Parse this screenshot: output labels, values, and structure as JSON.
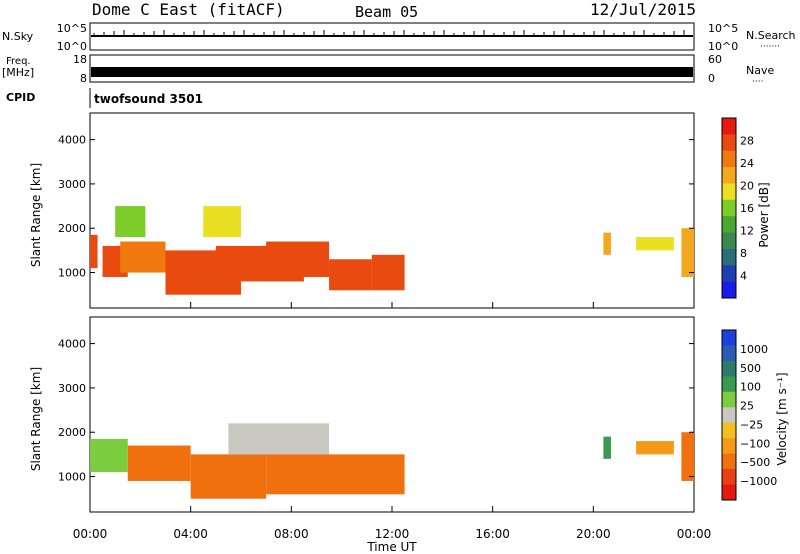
{
  "header": {
    "station": "Dome C East (fitACF)",
    "beam": "Beam 05",
    "date": "12/Jul/2015"
  },
  "panels": {
    "nsky": {
      "label": "N.Sky",
      "ticks_left": [
        "10^5",
        "10^0"
      ],
      "ticks_right": [
        "10^5",
        "10^0"
      ],
      "right_label": "N.Search",
      "right_dots": "·······"
    },
    "freq": {
      "label_line1": "Freq.",
      "label_line2": "[MHz]",
      "ticks_left": [
        "18",
        "8"
      ],
      "ticks_right": [
        "60",
        "0"
      ],
      "right_label": "Nave",
      "right_dots": "····"
    },
    "cpid": {
      "label": "CPID",
      "value": "twofsound 3501"
    }
  },
  "chart_data": [
    {
      "type": "heatmap",
      "name": "power-panel",
      "xlabel": "",
      "ylabel": "Slant Range [km]",
      "yticks": [
        "1000",
        "2000",
        "3000",
        "4000"
      ],
      "ylim": [
        200,
        4600
      ],
      "colorbar": {
        "label": "Power [dB]",
        "ticks": [
          "4",
          "8",
          "12",
          "16",
          "20",
          "24",
          "28"
        ],
        "colors": [
          "#1a1ae6",
          "#1e3fb4",
          "#2a6e7a",
          "#3a8a50",
          "#48a830",
          "#7ccc2a",
          "#e8e020",
          "#f4a820",
          "#f07a10",
          "#e84a10",
          "#e41a10"
        ]
      },
      "blocks": [
        {
          "t0": 0.0,
          "t1": 0.3,
          "r0": 1100,
          "r1": 1850,
          "v": 28
        },
        {
          "t0": 0.5,
          "t1": 1.5,
          "r0": 900,
          "r1": 1600,
          "v": 26
        },
        {
          "t0": 1.2,
          "t1": 3.0,
          "r0": 1000,
          "r1": 1700,
          "v": 24
        },
        {
          "t0": 3.0,
          "t1": 6.0,
          "r0": 500,
          "r1": 1500,
          "v": 28
        },
        {
          "t0": 5.0,
          "t1": 8.5,
          "r0": 800,
          "r1": 1600,
          "v": 26
        },
        {
          "t0": 7.0,
          "t1": 9.5,
          "r0": 900,
          "r1": 1700,
          "v": 27
        },
        {
          "t0": 9.5,
          "t1": 11.2,
          "r0": 600,
          "r1": 1300,
          "v": 26
        },
        {
          "t0": 11.2,
          "t1": 12.5,
          "r0": 600,
          "r1": 1400,
          "v": 28
        },
        {
          "t0": 1.0,
          "t1": 2.2,
          "r0": 1800,
          "r1": 2500,
          "v": 14
        },
        {
          "t0": 4.5,
          "t1": 6.0,
          "r0": 1800,
          "r1": 2500,
          "v": 18
        },
        {
          "t0": 20.4,
          "t1": 20.7,
          "r0": 1400,
          "r1": 1900,
          "v": 20
        },
        {
          "t0": 21.7,
          "t1": 23.2,
          "r0": 1500,
          "r1": 1800,
          "v": 18
        },
        {
          "t0": 23.5,
          "t1": 24.0,
          "r0": 900,
          "r1": 2000,
          "v": 22
        }
      ]
    },
    {
      "type": "heatmap",
      "name": "velocity-panel",
      "xlabel": "Time UT",
      "ylabel": "Slant Range [km]",
      "xticks": [
        "00:00",
        "04:00",
        "08:00",
        "12:00",
        "16:00",
        "20:00",
        "00:00"
      ],
      "yticks": [
        "1000",
        "2000",
        "3000",
        "4000"
      ],
      "xlim": [
        0,
        24
      ],
      "ylim": [
        200,
        4600
      ],
      "colorbar": {
        "label": "Velocity [m s⁻¹]",
        "ticks": [
          "1000",
          "500",
          "100",
          "25",
          "−25",
          "−100",
          "−500",
          "−1000"
        ],
        "colors": [
          "#1e3fe0",
          "#2a5cb4",
          "#2e7a6a",
          "#3a9a50",
          "#7ccc40",
          "#c8c8c0",
          "#f4c020",
          "#f49a18",
          "#f07010",
          "#e84010",
          "#e41a10"
        ]
      },
      "blocks": [
        {
          "t0": 0.0,
          "t1": 1.5,
          "r0": 1100,
          "r1": 1850,
          "v": 25
        },
        {
          "t0": 1.5,
          "t1": 4.0,
          "r0": 900,
          "r1": 1700,
          "v": -300
        },
        {
          "t0": 4.0,
          "t1": 7.0,
          "r0": 500,
          "r1": 1500,
          "v": -400
        },
        {
          "t0": 5.5,
          "t1": 9.5,
          "r0": 1500,
          "r1": 2200,
          "v": 0
        },
        {
          "t0": 7.0,
          "t1": 12.5,
          "r0": 600,
          "r1": 1500,
          "v": -400
        },
        {
          "t0": 20.4,
          "t1": 20.7,
          "r0": 1400,
          "r1": 1900,
          "v": 100
        },
        {
          "t0": 21.7,
          "t1": 23.2,
          "r0": 1500,
          "r1": 1800,
          "v": -100
        },
        {
          "t0": 23.5,
          "t1": 24.0,
          "r0": 900,
          "r1": 2000,
          "v": -300
        }
      ]
    }
  ]
}
